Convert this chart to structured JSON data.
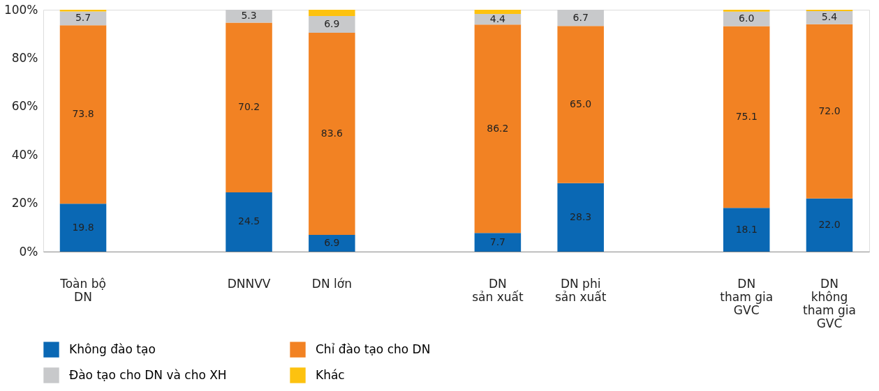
{
  "chart_data": {
    "type": "bar",
    "stacked": true,
    "categories": [
      "Toàn bộ\nDN",
      null,
      "DNNVV",
      "DN lớn",
      null,
      "DN\nsản xuất",
      "DN phi\nsản xuất",
      null,
      "DN\ntham gia\nGVC",
      "DN\nkhông\ntham gia\nGVC"
    ],
    "series": [
      {
        "name": "Không đào tạo",
        "color": "#0a68b4",
        "values": [
          19.8,
          null,
          24.5,
          6.9,
          null,
          7.7,
          28.3,
          null,
          18.1,
          22.0
        ],
        "value_labels": [
          "19.8",
          null,
          "24.5",
          "6.9",
          null,
          "7.7",
          "28.3",
          null,
          "18.1",
          "22.0"
        ]
      },
      {
        "name": "Chỉ đào tạo cho DN",
        "color": "#f28223",
        "values": [
          73.8,
          null,
          70.2,
          83.6,
          null,
          86.2,
          65.0,
          null,
          75.1,
          72.0
        ],
        "value_labels": [
          "73.8",
          null,
          "70.2",
          "83.6",
          null,
          "86.2",
          "65.0",
          null,
          "75.1",
          "72.0"
        ]
      },
      {
        "name": "Đào tạo cho DN và cho XH",
        "color": "#c8c9cb",
        "values": [
          5.7,
          null,
          5.3,
          6.9,
          null,
          4.4,
          6.7,
          null,
          6.0,
          5.4
        ],
        "value_labels": [
          "5.7",
          null,
          "5.3",
          "6.9",
          null,
          "4.4",
          "6.7",
          null,
          "6.0",
          "5.4"
        ]
      },
      {
        "name": "Khác",
        "color": "#fdc20f",
        "values": [
          0.7,
          null,
          0.0,
          2.6,
          null,
          1.7,
          0.0,
          null,
          0.8,
          0.6
        ]
      }
    ],
    "ylim": [
      0,
      100
    ],
    "yticks": [
      {
        "value": 0,
        "label": "0%"
      },
      {
        "value": 20,
        "label": "20%"
      },
      {
        "value": 40,
        "label": "40%"
      },
      {
        "value": 60,
        "label": "60%"
      },
      {
        "value": 80,
        "label": "80%"
      },
      {
        "value": 100,
        "label": "100%"
      }
    ],
    "grid": false,
    "legend": "bottom left"
  }
}
